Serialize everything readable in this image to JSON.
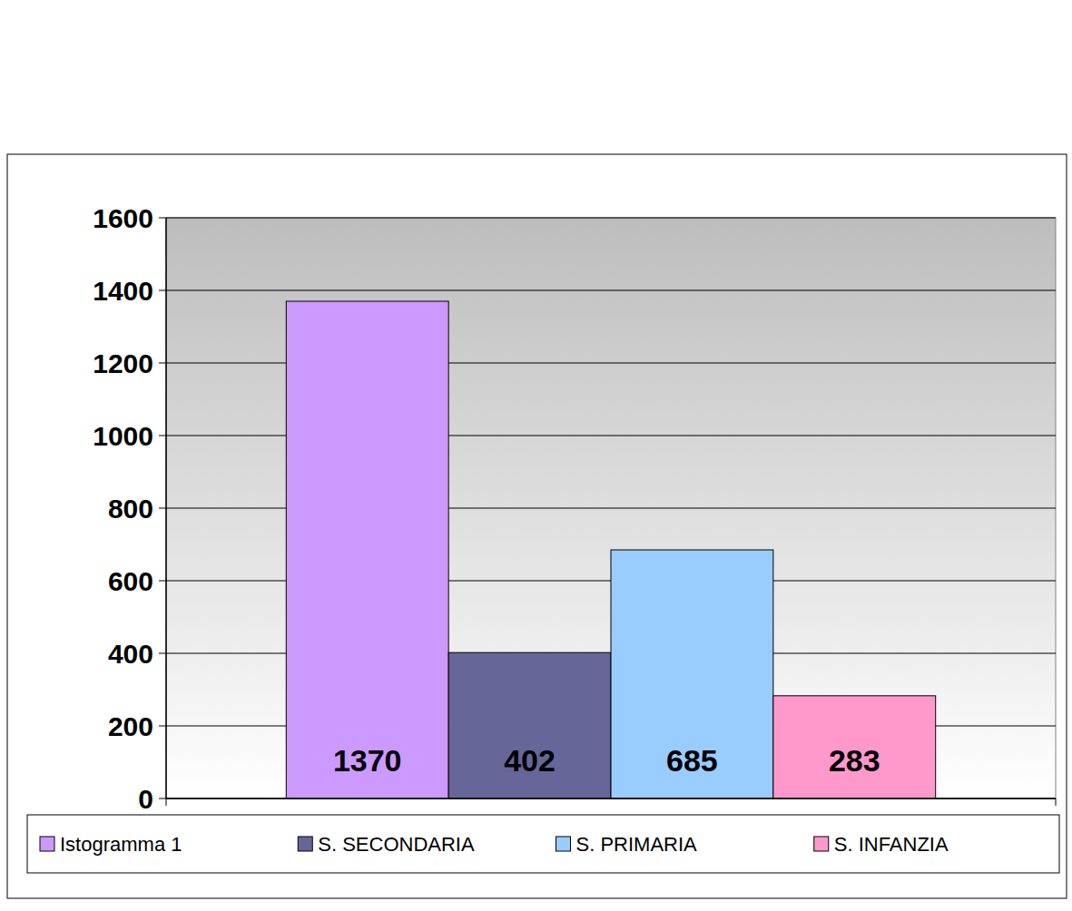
{
  "chart_data": {
    "type": "bar",
    "categories": [
      null
    ],
    "series": [
      {
        "name": "Istogramma 1",
        "color": "#cc99ff",
        "values": [
          1370
        ]
      },
      {
        "name": "S. SECONDARIA",
        "color": "#666699",
        "values": [
          402
        ]
      },
      {
        "name": "S. PRIMARIA",
        "color": "#99ccff",
        "values": [
          685
        ]
      },
      {
        "name": "S. INFANZIA",
        "color": "#ff99cc",
        "values": [
          283
        ]
      }
    ],
    "ylim": [
      0,
      1600
    ],
    "yticks": [
      0,
      200,
      400,
      600,
      800,
      1000,
      1200,
      1400,
      1600
    ],
    "grid": true,
    "legend": "bottom",
    "data_labels": true
  }
}
